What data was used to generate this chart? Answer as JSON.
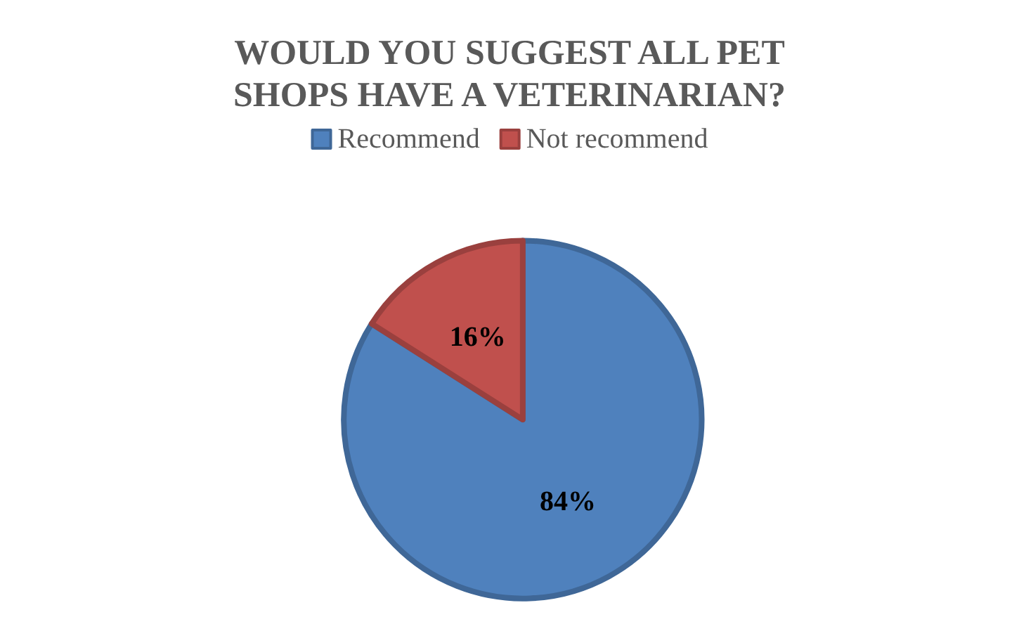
{
  "chart_data": {
    "type": "pie",
    "title": "WOULD YOU SUGGEST ALL PET\nSHOPS HAVE A VETERINARIAN?",
    "categories": [
      "Recommend",
      "Not recommend"
    ],
    "values": [
      84,
      16
    ],
    "colors": [
      "#4f81bd",
      "#c0504d"
    ],
    "value_labels": [
      "84%",
      "16%"
    ],
    "legend": "top"
  }
}
